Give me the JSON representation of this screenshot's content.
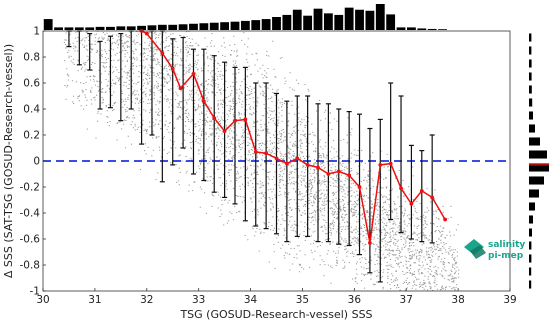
{
  "chart_data": {
    "type": "scatter",
    "xlabel": "TSG (GOSUD-Research-vessel) SSS",
    "ylabel": "Δ SSS (SAT-TSG (GOSUD-Research-vessel))",
    "xlim": [
      30,
      39
    ],
    "ylim": [
      -1,
      1
    ],
    "xticks": [
      "30",
      "31",
      "32",
      "33",
      "34",
      "35",
      "36",
      "37",
      "38",
      "39"
    ],
    "yticks": [
      "1",
      "0.8",
      "0.6",
      "0.4",
      "0.2",
      "0",
      "-0.2",
      "-0.4",
      "-0.6",
      "-0.8",
      "-1"
    ],
    "reference_line": {
      "y": 0,
      "color": "#2233dd",
      "style": "dashed"
    },
    "scatter_color": "#8a8a8a",
    "median_series": {
      "color": "#ee1111",
      "points": [
        [
          31.9,
          1.0
        ],
        [
          32.0,
          0.98
        ],
        [
          32.3,
          0.83
        ],
        [
          32.5,
          0.71
        ],
        [
          32.65,
          0.56
        ],
        [
          32.9,
          0.67
        ],
        [
          33.1,
          0.46
        ],
        [
          33.3,
          0.33
        ],
        [
          33.5,
          0.23
        ],
        [
          33.7,
          0.31
        ],
        [
          33.9,
          0.32
        ],
        [
          34.1,
          0.07
        ],
        [
          34.3,
          0.06
        ],
        [
          34.5,
          0.02
        ],
        [
          34.7,
          -0.02
        ],
        [
          34.9,
          0.02
        ],
        [
          35.1,
          -0.03
        ],
        [
          35.3,
          -0.05
        ],
        [
          35.5,
          -0.1
        ],
        [
          35.7,
          -0.08
        ],
        [
          35.9,
          -0.11
        ],
        [
          36.1,
          -0.2
        ],
        [
          36.3,
          -0.63
        ],
        [
          36.5,
          -0.03
        ],
        [
          36.7,
          -0.02
        ],
        [
          36.9,
          -0.21
        ],
        [
          37.1,
          -0.33
        ],
        [
          37.3,
          -0.23
        ],
        [
          37.5,
          -0.28
        ],
        [
          37.75,
          -0.45
        ]
      ]
    },
    "error_bars": [
      {
        "x": 30.5,
        "low": 0.88,
        "high": 1.0
      },
      {
        "x": 30.7,
        "low": 0.74,
        "high": 1.0
      },
      {
        "x": 30.9,
        "low": 0.7,
        "high": 0.98
      },
      {
        "x": 31.1,
        "low": 0.4,
        "high": 0.92
      },
      {
        "x": 31.3,
        "low": 0.41,
        "high": 0.96
      },
      {
        "x": 31.5,
        "low": 0.31,
        "high": 0.98
      },
      {
        "x": 31.7,
        "low": 0.4,
        "high": 1.0
      },
      {
        "x": 31.9,
        "low": 0.13,
        "high": 1.0
      },
      {
        "x": 32.1,
        "low": 0.2,
        "high": 1.0
      },
      {
        "x": 32.3,
        "low": -0.16,
        "high": 1.0
      },
      {
        "x": 32.5,
        "low": -0.03,
        "high": 0.94
      },
      {
        "x": 32.7,
        "low": 0.1,
        "high": 0.95
      },
      {
        "x": 32.9,
        "low": -0.1,
        "high": 0.86
      },
      {
        "x": 33.1,
        "low": -0.15,
        "high": 0.86
      },
      {
        "x": 33.3,
        "low": -0.24,
        "high": 0.81
      },
      {
        "x": 33.5,
        "low": -0.28,
        "high": 0.76
      },
      {
        "x": 33.7,
        "low": -0.33,
        "high": 0.72
      },
      {
        "x": 33.9,
        "low": -0.46,
        "high": 0.72
      },
      {
        "x": 34.1,
        "low": -0.5,
        "high": 0.6
      },
      {
        "x": 34.3,
        "low": -0.52,
        "high": 0.6
      },
      {
        "x": 34.5,
        "low": -0.56,
        "high": 0.52
      },
      {
        "x": 34.7,
        "low": -0.62,
        "high": 0.46
      },
      {
        "x": 34.9,
        "low": -0.58,
        "high": 0.5
      },
      {
        "x": 35.1,
        "low": -0.58,
        "high": 0.5
      },
      {
        "x": 35.3,
        "low": -0.62,
        "high": 0.44
      },
      {
        "x": 35.5,
        "low": -0.62,
        "high": 0.44
      },
      {
        "x": 35.7,
        "low": -0.64,
        "high": 0.4
      },
      {
        "x": 35.9,
        "low": -0.65,
        "high": 0.38
      },
      {
        "x": 36.1,
        "low": -0.72,
        "high": 0.36
      },
      {
        "x": 36.3,
        "low": -0.86,
        "high": 0.25
      },
      {
        "x": 36.5,
        "low": -0.93,
        "high": 0.32
      },
      {
        "x": 36.7,
        "low": -0.45,
        "high": 0.6
      },
      {
        "x": 36.9,
        "low": -0.55,
        "high": 0.5
      },
      {
        "x": 37.1,
        "low": -0.6,
        "high": 0.12
      },
      {
        "x": 37.3,
        "low": -0.62,
        "high": 0.08
      },
      {
        "x": 37.5,
        "low": -0.63,
        "high": 0.2
      }
    ],
    "top_histogram": {
      "bin_centers": [
        30.1,
        30.3,
        30.5,
        30.7,
        30.9,
        31.1,
        31.3,
        31.5,
        31.7,
        31.9,
        32.1,
        32.3,
        32.5,
        32.7,
        32.9,
        33.1,
        33.3,
        33.5,
        33.7,
        33.9,
        34.1,
        34.3,
        34.5,
        34.7,
        34.9,
        35.1,
        35.3,
        35.5,
        35.7,
        35.9,
        36.1,
        36.3,
        36.5,
        36.7,
        36.9,
        37.1,
        37.3,
        37.5,
        37.7
      ],
      "values": [
        0.42,
        0.1,
        0.1,
        0.1,
        0.1,
        0.12,
        0.12,
        0.14,
        0.14,
        0.16,
        0.18,
        0.2,
        0.2,
        0.22,
        0.24,
        0.26,
        0.28,
        0.3,
        0.32,
        0.35,
        0.38,
        0.42,
        0.5,
        0.58,
        0.78,
        0.55,
        0.82,
        0.64,
        0.58,
        0.86,
        0.78,
        0.74,
        1.0,
        0.6,
        0.1,
        0.1,
        0.06,
        0.04,
        0.03
      ]
    },
    "right_histogram": {
      "bin_centers": [
        0.95,
        0.85,
        0.75,
        0.65,
        0.55,
        0.45,
        0.35,
        0.25,
        0.15,
        0.05,
        -0.05,
        -0.15,
        -0.25,
        -0.35,
        -0.45,
        -0.55,
        -0.65,
        -0.75,
        -0.85,
        -0.95
      ],
      "values": [
        0.12,
        0.12,
        0.13,
        0.13,
        0.14,
        0.16,
        0.2,
        0.3,
        0.55,
        0.9,
        1.0,
        0.75,
        0.5,
        0.3,
        0.2,
        0.15,
        0.12,
        0.12,
        0.11,
        0.11
      ],
      "median_marker_y": -0.03
    }
  },
  "logo": {
    "line1": "salinity",
    "line2": "pi-mep",
    "color": "#1aa58c"
  }
}
